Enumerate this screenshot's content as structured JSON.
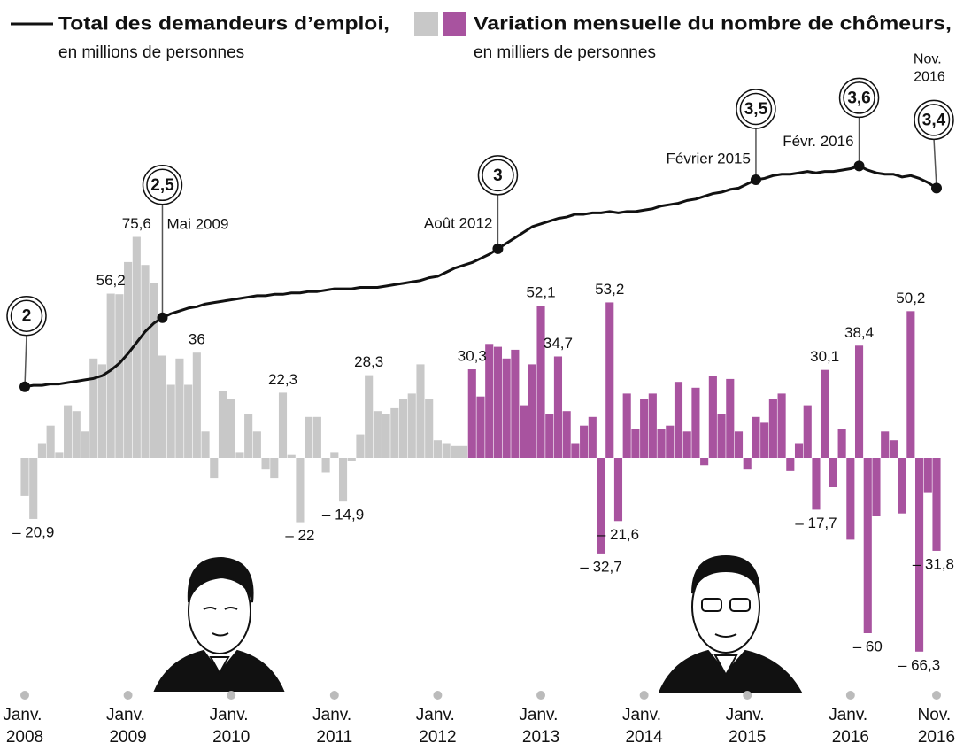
{
  "chart_data": {
    "type": "combo",
    "categories": [
      "Janv. 2008",
      null,
      null,
      null,
      null,
      null,
      null,
      null,
      null,
      null,
      null,
      null,
      "Janv. 2009",
      null,
      null,
      null,
      null,
      null,
      null,
      null,
      null,
      null,
      null,
      null,
      "Janv. 2010",
      null,
      null,
      null,
      null,
      null,
      null,
      null,
      null,
      null,
      null,
      null,
      "Janv. 2011",
      null,
      null,
      null,
      null,
      null,
      null,
      null,
      null,
      null,
      null,
      null,
      "Janv. 2012",
      null,
      null,
      null,
      null,
      null,
      null,
      null,
      null,
      null,
      null,
      null,
      "Janv. 2013",
      null,
      null,
      null,
      null,
      null,
      null,
      null,
      null,
      null,
      null,
      null,
      "Janv. 2014",
      null,
      null,
      null,
      null,
      null,
      null,
      null,
      null,
      null,
      null,
      null,
      "Janv. 2015",
      null,
      null,
      null,
      null,
      null,
      null,
      null,
      null,
      null,
      null,
      null,
      "Janv. 2016",
      null,
      null,
      null,
      null,
      null,
      null,
      null,
      null,
      null,
      "Nov. 2016"
    ],
    "series": [
      {
        "name": "Total des demandeurs d’emploi,",
        "note": "en millions de personnes",
        "type": "line",
        "axis": "y2",
        "color": "#111111",
        "values": [
          2.0,
          2.01,
          2.01,
          2.02,
          2.02,
          2.03,
          2.04,
          2.05,
          2.06,
          2.08,
          2.12,
          2.17,
          2.24,
          2.32,
          2.4,
          2.46,
          2.5,
          2.53,
          2.55,
          2.57,
          2.58,
          2.6,
          2.61,
          2.62,
          2.63,
          2.64,
          2.65,
          2.66,
          2.66,
          2.67,
          2.67,
          2.68,
          2.68,
          2.69,
          2.69,
          2.7,
          2.71,
          2.71,
          2.71,
          2.72,
          2.72,
          2.72,
          2.73,
          2.74,
          2.75,
          2.76,
          2.77,
          2.79,
          2.8,
          2.83,
          2.86,
          2.88,
          2.9,
          2.93,
          2.96,
          3.0,
          3.04,
          3.08,
          3.12,
          3.16,
          3.18,
          3.2,
          3.22,
          3.23,
          3.25,
          3.25,
          3.26,
          3.26,
          3.27,
          3.26,
          3.27,
          3.27,
          3.28,
          3.29,
          3.31,
          3.32,
          3.33,
          3.35,
          3.36,
          3.38,
          3.4,
          3.41,
          3.43,
          3.44,
          3.47,
          3.5,
          3.51,
          3.53,
          3.54,
          3.54,
          3.55,
          3.56,
          3.55,
          3.56,
          3.56,
          3.57,
          3.58,
          3.6,
          3.57,
          3.55,
          3.54,
          3.54,
          3.52,
          3.53,
          3.51,
          3.48,
          3.44
        ]
      },
      {
        "name": "Variation mensuelle du nombre de chômeurs,",
        "note": "en milliers de personnes",
        "type": "bar",
        "color_periods": [
          {
            "from": 0,
            "to": 51,
            "color": "#c8c8c8"
          },
          {
            "from": 52,
            "to": 106,
            "color": "#a8539f"
          }
        ],
        "values": [
          -13,
          -20.9,
          5,
          11,
          2,
          18,
          16,
          9,
          34,
          32,
          56.2,
          56,
          67,
          75.6,
          66,
          60,
          35,
          25,
          34,
          25,
          36,
          9,
          -7,
          23,
          20,
          2,
          15,
          9,
          -4,
          -7,
          22.3,
          1,
          -22,
          14,
          14,
          -5,
          2,
          -14.9,
          -1,
          8,
          28.3,
          16,
          15,
          17,
          20,
          22,
          32,
          20,
          6,
          5,
          4,
          4,
          30.3,
          21,
          39,
          38,
          34,
          37,
          18,
          32,
          52.1,
          15,
          34.7,
          16,
          5,
          11,
          14,
          -32.7,
          53.2,
          -21.6,
          22,
          10,
          20,
          22,
          10,
          11,
          26,
          9,
          24,
          -2.5,
          28,
          15,
          27,
          9,
          -4,
          14,
          12,
          20,
          22,
          -4.5,
          5,
          18,
          -17.7,
          30.1,
          -10,
          10,
          -28,
          38.4,
          -60,
          -20,
          9,
          6,
          -19,
          50.2,
          -66.3,
          -12,
          -31.8
        ],
        "value_labels": [
          null,
          "– 20,9",
          null,
          null,
          null,
          null,
          null,
          null,
          null,
          null,
          "56,2",
          null,
          null,
          "75,6",
          null,
          null,
          null,
          null,
          null,
          null,
          "36",
          null,
          null,
          null,
          null,
          null,
          null,
          null,
          null,
          null,
          "22,3",
          null,
          "– 22",
          null,
          null,
          null,
          null,
          "– 14,9",
          null,
          null,
          "28,3",
          null,
          null,
          null,
          null,
          null,
          null,
          null,
          null,
          null,
          null,
          null,
          "30,3",
          null,
          null,
          null,
          null,
          null,
          null,
          null,
          "52,1",
          null,
          "34,7",
          null,
          null,
          null,
          null,
          "– 32,7",
          "53,2",
          "– 21,6",
          null,
          null,
          null,
          null,
          null,
          null,
          null,
          null,
          null,
          null,
          null,
          null,
          null,
          null,
          null,
          null,
          null,
          null,
          null,
          null,
          null,
          null,
          "– 17,7",
          "30,1",
          null,
          null,
          null,
          "38,4",
          "– 60",
          null,
          null,
          null,
          null,
          "50,2",
          "– 66,3",
          null,
          "– 31,8"
        ]
      }
    ],
    "ylim": [
      -80,
      140
    ],
    "y2lim": [
      -0.21,
      4.45
    ],
    "annotations": [
      {
        "at": 0,
        "label": "2"
      },
      {
        "at": 16,
        "label": "2,5",
        "text": "Mai 2009"
      },
      {
        "at": 55,
        "label": "3",
        "text": "Août 2012"
      },
      {
        "at": 85,
        "label": "3,5",
        "text": "Février 2015"
      },
      {
        "at": 97,
        "label": "3,6",
        "text": "Févr. 2016"
      },
      {
        "at": 106,
        "label": "3,4",
        "text": "Nov. 2016"
      }
    ]
  }
}
